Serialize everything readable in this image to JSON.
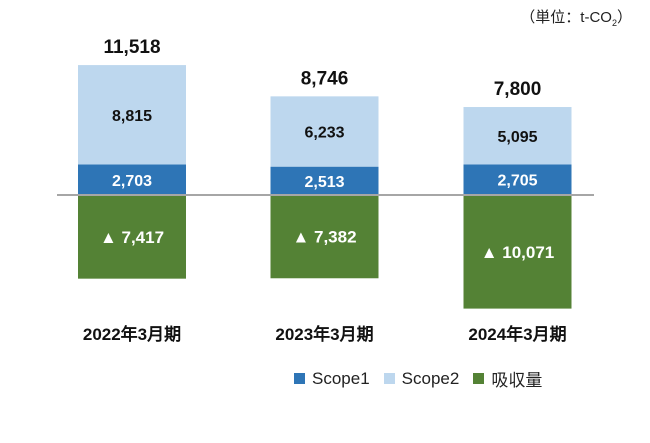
{
  "chart_data": {
    "type": "bar",
    "stacked": true,
    "unit_label_prefix": "（単位：t-CO",
    "unit_label_sub": "2",
    "unit_label_suffix": "）",
    "categories": [
      "2022年3月期",
      "2023年3月期",
      "2024年3月期"
    ],
    "series": [
      {
        "name": "Scope1",
        "color": "#2e75b6",
        "values": [
          2703,
          2513,
          2705
        ]
      },
      {
        "name": "Scope2",
        "color": "#bdd7ee",
        "values": [
          8815,
          6233,
          5095
        ]
      },
      {
        "name": "吸収量",
        "color": "#548235",
        "values": [
          -7417,
          -7382,
          -10071
        ]
      }
    ],
    "totals": [
      11518,
      8746,
      7800
    ],
    "negative_marker": "▲",
    "legend_position": "bottom-right",
    "grid": false,
    "axis_line_color": "#a6a6a6"
  }
}
